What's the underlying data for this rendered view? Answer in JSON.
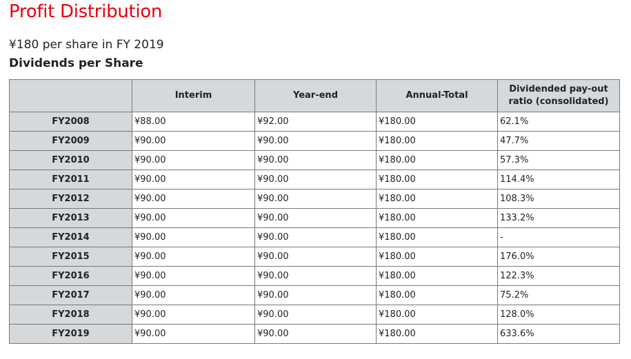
{
  "page": {
    "title": "Profit Distribution",
    "subtitle": "¥180 per share in FY 2019",
    "section_title": "Dividends per Share",
    "accent_color": "#e60012"
  },
  "table": {
    "headers": [
      "",
      "Interim",
      "Year-end",
      "Annual-Total",
      "Dividended pay-out ratio (consolidated)"
    ],
    "rows": [
      [
        "FY2008",
        "¥88.00",
        "¥92.00",
        "¥180.00",
        "62.1%"
      ],
      [
        "FY2009",
        "¥90.00",
        "¥90.00",
        "¥180.00",
        "47.7%"
      ],
      [
        "FY2010",
        "¥90.00",
        "¥90.00",
        "¥180.00",
        "57.3%"
      ],
      [
        "FY2011",
        "¥90.00",
        "¥90.00",
        "¥180.00",
        "114.4%"
      ],
      [
        "FY2012",
        "¥90.00",
        "¥90.00",
        "¥180.00",
        "108.3%"
      ],
      [
        "FY2013",
        "¥90.00",
        "¥90.00",
        "¥180.00",
        "133.2%"
      ],
      [
        "FY2014",
        "¥90.00",
        "¥90.00",
        "¥180.00",
        "-"
      ],
      [
        "FY2015",
        "¥90.00",
        "¥90.00",
        "¥180.00",
        "176.0%"
      ],
      [
        "FY2016",
        "¥90.00",
        "¥90.00",
        "¥180.00",
        "122.3%"
      ],
      [
        "FY2017",
        "¥90.00",
        "¥90.00",
        "¥180.00",
        "75.2%"
      ],
      [
        "FY2018",
        "¥90.00",
        "¥90.00",
        "¥180.00",
        "128.0%"
      ],
      [
        "FY2019",
        "¥90.00",
        "¥90.00",
        "¥180.00",
        "633.6%"
      ]
    ]
  }
}
